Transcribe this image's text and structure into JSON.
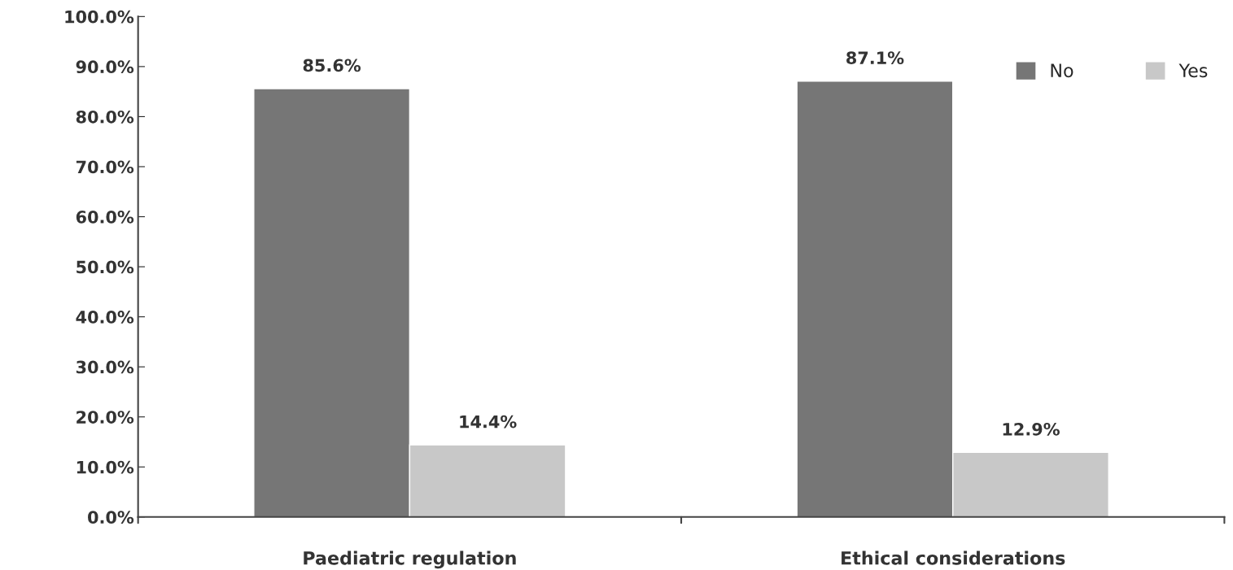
{
  "chart_data": {
    "type": "bar",
    "categories": [
      "Paediatric regulation",
      "Ethical considerations"
    ],
    "series": [
      {
        "name": "No",
        "color": "#767676",
        "values": [
          85.6,
          87.1
        ],
        "value_labels": [
          "85.6%",
          "87.1%"
        ]
      },
      {
        "name": "Yes",
        "color": "#c8c8c8",
        "values": [
          14.4,
          12.9
        ],
        "value_labels": [
          "14.4%",
          "12.9%"
        ]
      }
    ],
    "ylim": [
      0,
      100
    ],
    "yticks": [
      {
        "value": 0,
        "label": "0.0%"
      },
      {
        "value": 10,
        "label": "10.0%"
      },
      {
        "value": 20,
        "label": "20.0%"
      },
      {
        "value": 30,
        "label": "30.0%"
      },
      {
        "value": 40,
        "label": "40.0%"
      },
      {
        "value": 50,
        "label": "50.0%"
      },
      {
        "value": 60,
        "label": "60.0%"
      },
      {
        "value": 70,
        "label": "70.0%"
      },
      {
        "value": 80,
        "label": "80.0%"
      },
      {
        "value": 90,
        "label": "90.0%"
      },
      {
        "value": 100,
        "label": "100.0%"
      }
    ],
    "grid": false,
    "legend": "top right"
  }
}
